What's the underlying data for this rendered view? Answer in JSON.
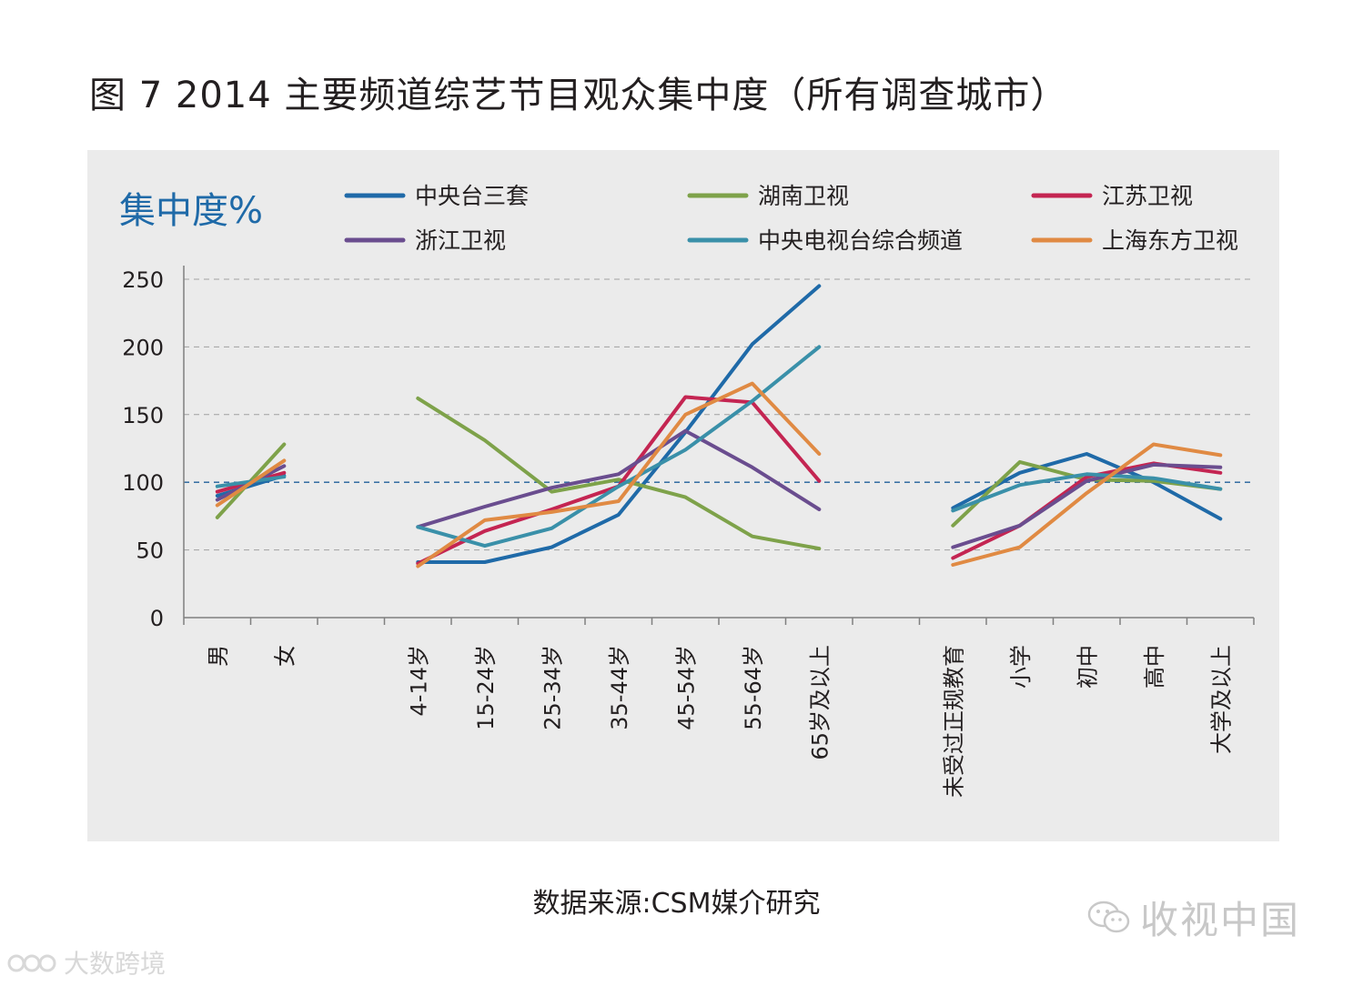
{
  "title": "图 7  2014 主要频道综艺节目观众集中度（所有调查城市）",
  "source": "数据来源:CSM媒介研究",
  "watermark": "收视中国",
  "corner_logo": "大数跨境",
  "chart_data": {
    "type": "line",
    "ylabel": "集中度%",
    "ylim": [
      0,
      250
    ],
    "yticks": [
      0,
      50,
      100,
      150,
      200,
      250
    ],
    "reference_line": 100,
    "categories": [
      "男",
      "女",
      "",
      "4-14岁",
      "15-24岁",
      "25-34岁",
      "35-44岁",
      "45-54岁",
      "55-64岁",
      "65岁及以上",
      "",
      "未受过正规教育",
      "小学",
      "初中",
      "高中",
      "大学及以上"
    ],
    "groups": [
      [
        0,
        1
      ],
      [
        3,
        4,
        5,
        6,
        7,
        8,
        9
      ],
      [
        11,
        12,
        13,
        14,
        15
      ]
    ],
    "series": [
      {
        "name": "中央台三套",
        "color": "#1f6aa8",
        "values": [
          90,
          105,
          null,
          41,
          41,
          52,
          76,
          137,
          202,
          245,
          null,
          81,
          107,
          121,
          100,
          73
        ]
      },
      {
        "name": "湖南卫视",
        "color": "#7ea24a",
        "values": [
          74,
          128,
          null,
          162,
          131,
          93,
          102,
          89,
          60,
          51,
          null,
          68,
          115,
          102,
          101,
          95
        ]
      },
      {
        "name": "江苏卫视",
        "color": "#c42552",
        "values": [
          93,
          107,
          null,
          40,
          64,
          80,
          97,
          163,
          159,
          101,
          null,
          44,
          68,
          104,
          114,
          107
        ]
      },
      {
        "name": "浙江卫视",
        "color": "#6a4d8f",
        "values": [
          87,
          112,
          null,
          67,
          82,
          96,
          106,
          138,
          111,
          80,
          null,
          52,
          68,
          101,
          113,
          111
        ]
      },
      {
        "name": "中央电视台综合频道",
        "color": "#3a90a9",
        "values": [
          97,
          104,
          null,
          67,
          53,
          66,
          97,
          124,
          160,
          200,
          null,
          79,
          98,
          106,
          103,
          95
        ]
      },
      {
        "name": "上海东方卫视",
        "color": "#e08a43",
        "values": [
          83,
          116,
          null,
          38,
          72,
          78,
          86,
          150,
          173,
          121,
          null,
          39,
          52,
          92,
          128,
          120
        ]
      }
    ]
  }
}
